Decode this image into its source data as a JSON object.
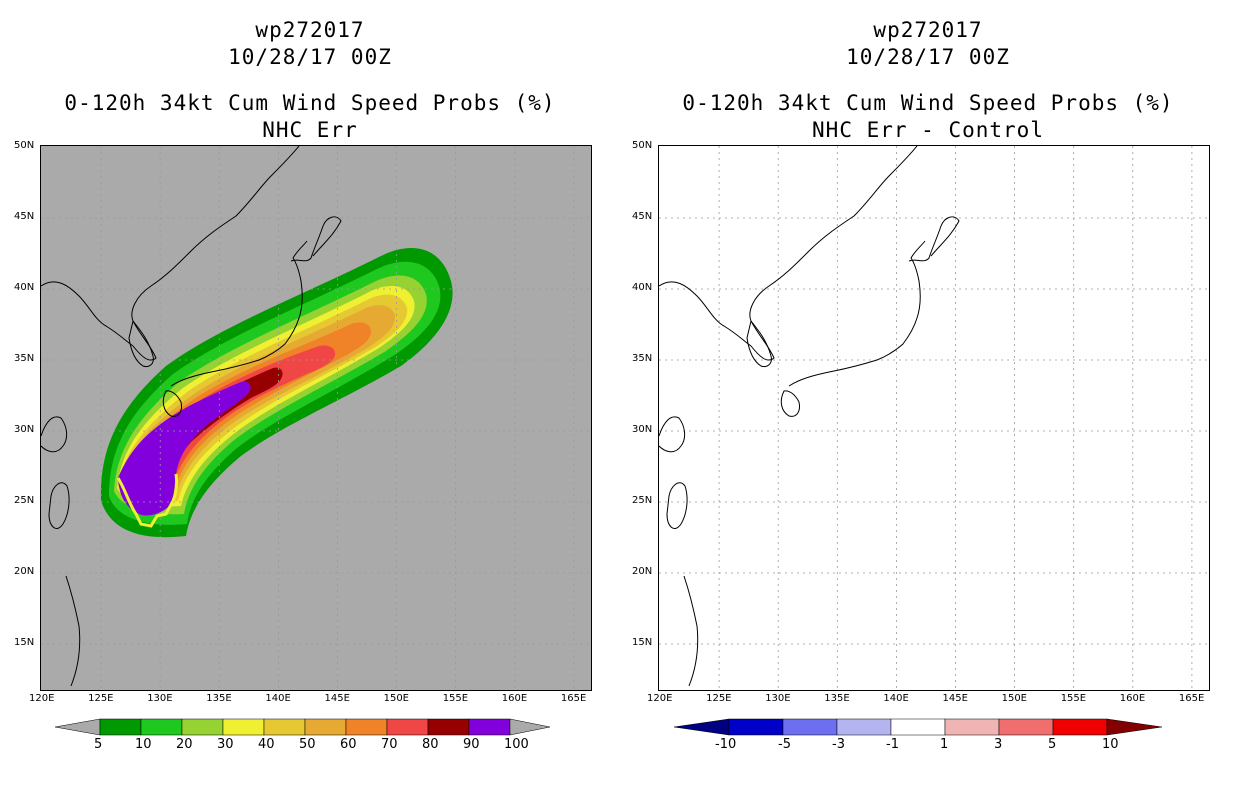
{
  "left_panel": {
    "title_line1": "wp272017",
    "title_line2": "10/28/17 00Z",
    "title_line3": "0-120h 34kt Cum Wind Speed Probs (%)",
    "title_line4": "NHC Err",
    "background_color": "#aaaaaa",
    "colorbar": {
      "labels": [
        "5",
        "10",
        "20",
        "30",
        "40",
        "50",
        "60",
        "70",
        "80",
        "90",
        "100"
      ],
      "colors": [
        "#009900",
        "#1ec81e",
        "#96d232",
        "#f0f032",
        "#e6c832",
        "#e6aa32",
        "#f08228",
        "#f04646",
        "#960000",
        "#8200dc"
      ],
      "end_color": "#aaaaaa"
    }
  },
  "right_panel": {
    "title_line1": "wp272017",
    "title_line2": "10/28/17 00Z",
    "title_line3": "0-120h 34kt Cum Wind Speed Probs (%)",
    "title_line4": "NHC Err - Control",
    "background_color": "#ffffff",
    "colorbar": {
      "labels": [
        "-10",
        "-5",
        "-3",
        "-1",
        "1",
        "3",
        "5",
        "10"
      ],
      "colors": [
        "#0000c8",
        "#6e6ef0",
        "#b4b4f0",
        "#ffffff",
        "#f0b4b4",
        "#f06e6e",
        "#f00000"
      ],
      "left_end_color": "#000082",
      "right_end_color": "#820000"
    }
  },
  "axes": {
    "lon_labels": [
      "120E",
      "125E",
      "130E",
      "135E",
      "140E",
      "145E",
      "150E",
      "155E",
      "160E",
      "165E"
    ],
    "lat_labels": [
      "50N",
      "45N",
      "40N",
      "35N",
      "30N",
      "25N",
      "20N",
      "15N"
    ]
  }
}
